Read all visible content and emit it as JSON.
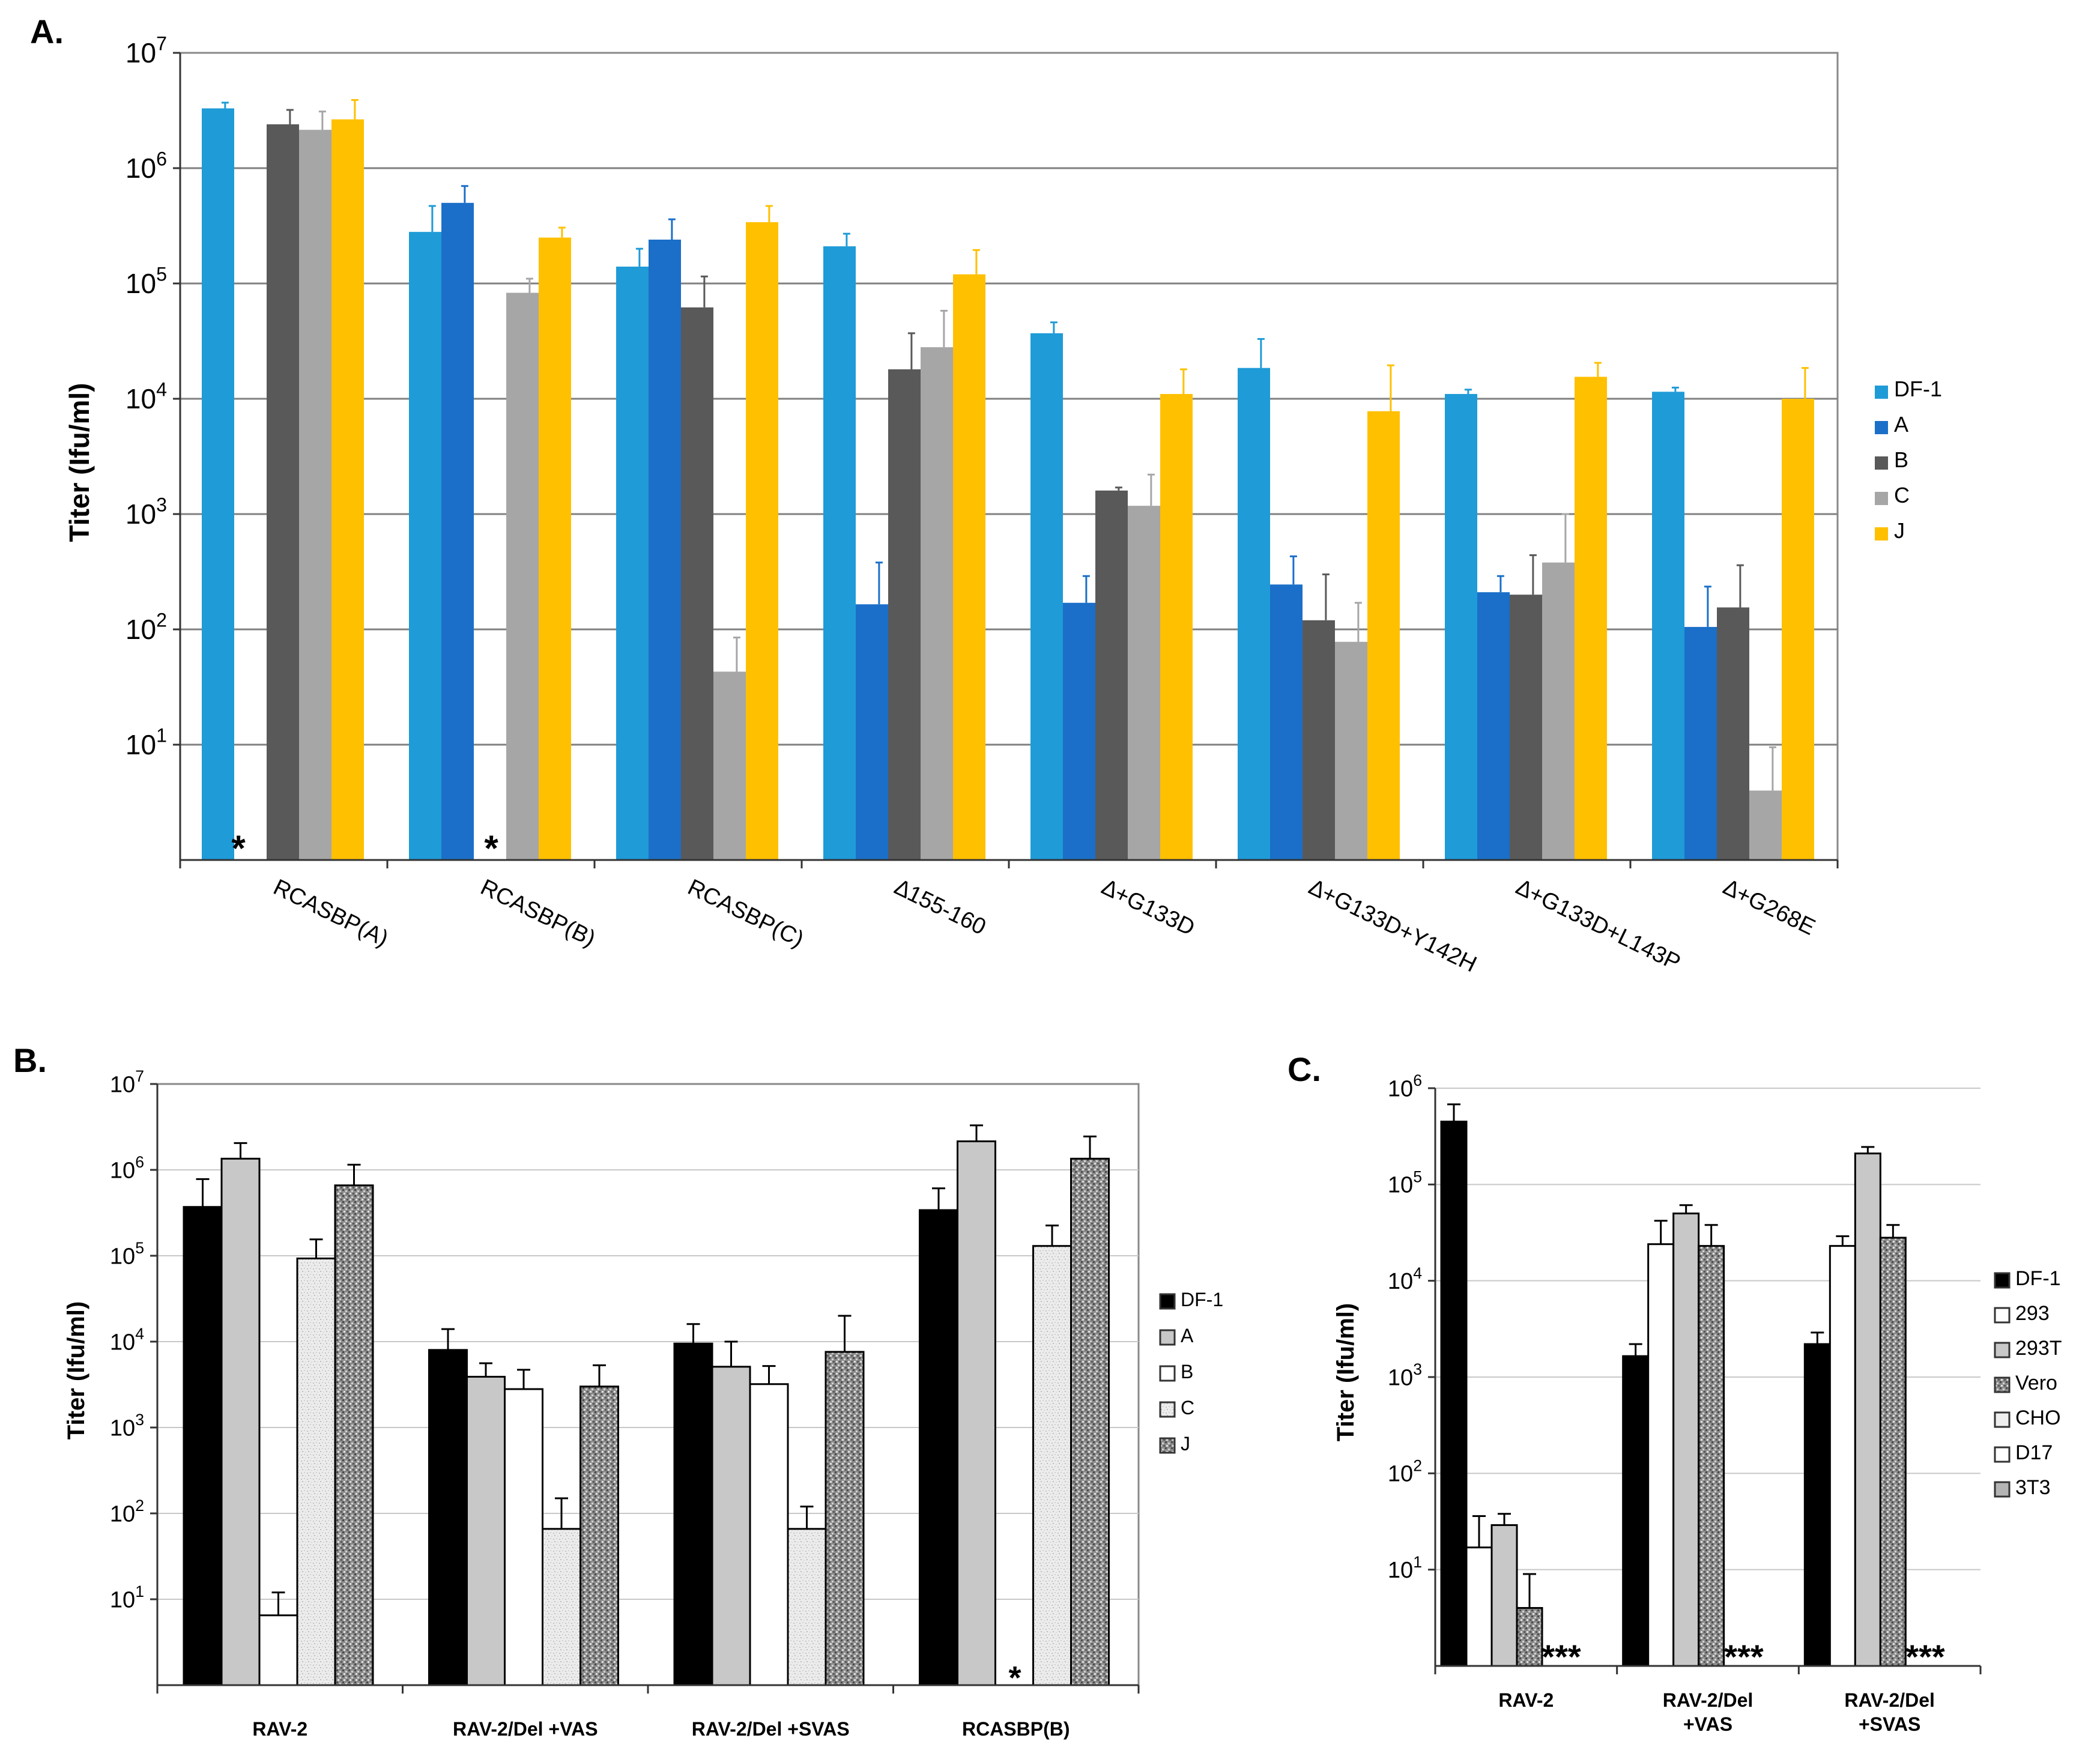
{
  "chart_data": [
    {
      "panel": "A.",
      "type": "bar",
      "scale": "log",
      "ylabel": "Titer (Ifu/ml)",
      "y_ticks": [
        {
          "base": "10",
          "exp": "7"
        },
        {
          "base": "10",
          "exp": "6"
        },
        {
          "base": "10",
          "exp": "5"
        },
        {
          "base": "10",
          "exp": "4"
        },
        {
          "base": "10",
          "exp": "3"
        },
        {
          "base": "10",
          "exp": "2"
        },
        {
          "base": "10",
          "exp": "1"
        }
      ],
      "ylim": [
        1,
        10000000
      ],
      "categories": [
        "RCASBP(A)",
        "RCASBP(B)",
        "RCASBP(C)",
        "∆155-160",
        "∆+G133D",
        "∆+G133D+Y142H",
        "∆+G133D+L143P",
        "∆+G268E"
      ],
      "series": [
        {
          "name": "DF-1",
          "color": "#1f9bd7",
          "values": [
            3300000,
            280000,
            140000,
            210000,
            37000,
            18500,
            11000,
            11500
          ],
          "errors": [
            3700000,
            470000,
            200000,
            270000,
            46000,
            33000,
            12000,
            12500
          ]
        },
        {
          "name": "A",
          "color": "#1b6fc8",
          "values": [
            null,
            500000,
            240000,
            165,
            170,
            245,
            210,
            105
          ],
          "errors": [
            null,
            700000,
            360000,
            380,
            290,
            430,
            290,
            235
          ]
        },
        {
          "name": "B",
          "color": "#595959",
          "values": [
            2400000,
            null,
            62000,
            18000,
            1600,
            120,
            200,
            155
          ],
          "errors": [
            3200000,
            null,
            115000,
            37000,
            1700,
            300,
            440,
            360
          ]
        },
        {
          "name": "C",
          "color": "#a6a6a6",
          "values": [
            2150000,
            83000,
            43,
            28000,
            1180,
            78,
            380,
            4
          ],
          "errors": [
            3100000,
            110000,
            85,
            58000,
            2200,
            170,
            1000,
            9.5
          ]
        },
        {
          "name": "J",
          "color": "#ffc000",
          "values": [
            2650000,
            250000,
            340000,
            120000,
            11000,
            7800,
            15500,
            10000
          ],
          "errors": [
            3900000,
            305000,
            470000,
            195000,
            18000,
            19500,
            20500,
            18500
          ]
        }
      ],
      "annotations": [
        "*",
        "*"
      ]
    },
    {
      "panel": "B.",
      "type": "bar",
      "scale": "log",
      "ylabel": "Titer (Ifu/ml)",
      "y_ticks": [
        {
          "base": "10",
          "exp": "7"
        },
        {
          "base": "10",
          "exp": "6"
        },
        {
          "base": "10",
          "exp": "5"
        },
        {
          "base": "10",
          "exp": "4"
        },
        {
          "base": "10",
          "exp": "3"
        },
        {
          "base": "10",
          "exp": "2"
        },
        {
          "base": "10",
          "exp": "1"
        }
      ],
      "ylim": [
        1,
        10000000
      ],
      "categories": [
        "RAV-2",
        "RAV-2/Del +VAS",
        "RAV-2/Del +SVAS",
        "RCASBP(B)"
      ],
      "series": [
        {
          "name": "DF-1",
          "color": "#000000",
          "values": [
            370000,
            8000,
            9500,
            340000
          ],
          "errors": [
            780000,
            14000,
            16000,
            610000
          ]
        },
        {
          "name": "A",
          "color": "#c8c8c8",
          "values": [
            1350000,
            3900,
            5100,
            2150000
          ],
          "errors": [
            2050000,
            5600,
            10000,
            3300000
          ]
        },
        {
          "name": "B",
          "color": "#ffffff",
          "values": [
            6.5,
            2800,
            3200,
            null
          ],
          "errors": [
            12,
            4700,
            5200,
            null
          ]
        },
        {
          "name": "C",
          "color": "#e6e6e6",
          "values": [
            93000,
            66,
            66,
            130000
          ],
          "errors": [
            155000,
            150,
            120,
            225000
          ]
        },
        {
          "name": "J",
          "color": "#8a8a8a",
          "values": [
            660000,
            3000,
            7600,
            1350000
          ],
          "errors": [
            1150000,
            5300,
            20000,
            2450000
          ]
        }
      ],
      "annotations": [
        "*"
      ]
    },
    {
      "panel": "C.",
      "type": "bar",
      "scale": "log",
      "ylabel": "Titer (Ifu/ml)",
      "y_ticks": [
        {
          "base": "10",
          "exp": "6"
        },
        {
          "base": "10",
          "exp": "5"
        },
        {
          "base": "10",
          "exp": "4"
        },
        {
          "base": "10",
          "exp": "3"
        },
        {
          "base": "10",
          "exp": "2"
        },
        {
          "base": "10",
          "exp": "1"
        }
      ],
      "ylim": [
        1,
        1000000
      ],
      "category_lines": [
        [
          "RAV-2"
        ],
        [
          "RAV-2/Del",
          "+VAS"
        ],
        [
          "RAV-2/Del",
          "+SVAS"
        ]
      ],
      "series": [
        {
          "name": "DF-1",
          "color": "#000000",
          "values": [
            450000,
            1650,
            2200
          ],
          "errors": [
            680000,
            2200,
            2900
          ]
        },
        {
          "name": "293",
          "color": "#ffffff",
          "values": [
            17,
            24000,
            23000
          ],
          "errors": [
            36,
            42000,
            29000
          ]
        },
        {
          "name": "293T",
          "color": "#c8c8c8",
          "values": [
            29,
            50000,
            210000
          ],
          "errors": [
            38,
            61000,
            245000
          ]
        },
        {
          "name": "Vero",
          "color": "#8a8a8a",
          "values": [
            4,
            23000,
            28000
          ],
          "errors": [
            9,
            38000,
            38000
          ]
        },
        {
          "name": "CHO",
          "color": "#e6e6e6",
          "values": [
            null,
            null,
            null
          ],
          "errors": [
            null,
            null,
            null
          ]
        },
        {
          "name": "D17",
          "color": "#ffffff",
          "values": [
            null,
            null,
            null
          ],
          "errors": [
            null,
            null,
            null
          ]
        },
        {
          "name": "3T3",
          "color": "#b4b4b4",
          "values": [
            null,
            null,
            null
          ],
          "errors": [
            null,
            null,
            null
          ]
        }
      ],
      "annotations": [
        "***",
        "***",
        "***"
      ]
    }
  ]
}
